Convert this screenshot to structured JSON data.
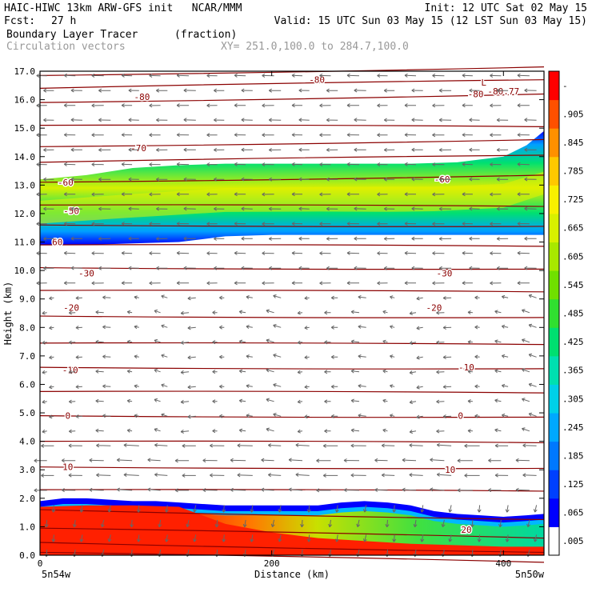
{
  "header": {
    "line1_left": "HAIC-HIWC 13km ARW-GFS init   NCAR/MMM",
    "line1_right": "Init: 12 UTC Sat 02 May 15",
    "fcst_label": "Fcst:",
    "fcst_value": "27 h",
    "valid": "Valid: 15 UTC Sun 03 May 15 (12 LST Sun 03 May 15)",
    "field_name": "Boundary Layer Tracer",
    "field_units": "(fraction)",
    "vector_label": "Circulation vectors",
    "xy_label": "XY= 251.0,100.0 to 284.7,100.0"
  },
  "chart_data": {
    "type": "heatmap",
    "title": "Boundary Layer Tracer",
    "units": "(fraction)",
    "xlabel": "Distance (km)",
    "ylabel": "Height (km)",
    "xlim": [
      0,
      435
    ],
    "ylim": [
      0,
      17
    ],
    "x_ticks": [
      "0",
      "200",
      "400"
    ],
    "y_ticks": [
      "0.0",
      "1.0",
      "2.0",
      "3.0",
      "4.0",
      "5.0",
      "6.0",
      "7.0",
      "8.0",
      "9.0",
      "10.0",
      "11.0",
      "12.0",
      "13.0",
      "14.0",
      "15.0",
      "16.0",
      "17.0"
    ],
    "x_endpoint_labels": [
      "5n54w",
      "5n50w"
    ],
    "colorbar_labels": [
      ".005",
      ".065",
      ".125",
      ".185",
      ".245",
      ".305",
      ".365",
      ".425",
      ".485",
      ".545",
      ".605",
      ".665",
      ".725",
      ".785",
      ".845",
      ".905",
      "-"
    ],
    "colorbar_colors": [
      "#ffffff",
      "#0000ff",
      "#0040ff",
      "#0078ff",
      "#00a8ff",
      "#00d0e8",
      "#00e0b0",
      "#00e070",
      "#30e030",
      "#70e000",
      "#a8e800",
      "#d8f000",
      "#f8f000",
      "#ffc800",
      "#ff9000",
      "#ff5000",
      "#ff0000"
    ],
    "temperature_contour_labels": [
      {
        "x": 15,
        "z": 11.0,
        "text": "60"
      },
      {
        "x": 88,
        "z": 16.1,
        "text": "-80"
      },
      {
        "x": 85,
        "z": 14.3,
        "text": "-70"
      },
      {
        "x": 22,
        "z": 13.1,
        "text": "-60"
      },
      {
        "x": 27,
        "z": 12.1,
        "text": "-50"
      },
      {
        "x": 40,
        "z": 9.9,
        "text": "-30"
      },
      {
        "x": 27,
        "z": 8.7,
        "text": "-20"
      },
      {
        "x": 26,
        "z": 6.5,
        "text": "-10"
      },
      {
        "x": 24,
        "z": 4.9,
        "text": "0"
      },
      {
        "x": 24,
        "z": 3.1,
        "text": "10"
      },
      {
        "x": 239,
        "z": 16.7,
        "text": "-80"
      },
      {
        "x": 376,
        "z": 16.2,
        "text": "-80"
      },
      {
        "x": 400,
        "z": 16.3,
        "text": "-80.77"
      },
      {
        "x": 383,
        "z": 16.6,
        "text": "L"
      },
      {
        "x": 347,
        "z": 13.2,
        "text": "-60"
      },
      {
        "x": 349,
        "z": 9.9,
        "text": "-30"
      },
      {
        "x": 340,
        "z": 8.7,
        "text": "-20"
      },
      {
        "x": 368,
        "z": 6.6,
        "text": "-10"
      },
      {
        "x": 363,
        "z": 4.9,
        "text": "0"
      },
      {
        "x": 354,
        "z": 3.0,
        "text": "10"
      },
      {
        "x": 368,
        "z": 0.9,
        "text": "20"
      }
    ],
    "tracer_upper_layer": {
      "x": [
        0,
        40,
        80,
        120,
        160,
        200,
        240,
        280,
        320,
        360,
        400,
        420,
        435
      ],
      "bottom": [
        10.9,
        10.9,
        10.95,
        11.0,
        11.2,
        11.25,
        11.25,
        11.25,
        11.25,
        11.25,
        11.25,
        11.25,
        11.25
      ],
      "top": [
        13.2,
        13.35,
        13.6,
        13.7,
        13.75,
        13.75,
        13.75,
        13.75,
        13.75,
        13.8,
        14.0,
        14.4,
        14.9
      ],
      "core_x": [
        0,
        80,
        160,
        240,
        300,
        340,
        400,
        435
      ],
      "core_max": [
        0.73,
        0.75,
        0.76,
        0.78,
        0.8,
        0.78,
        0.76,
        0.72
      ]
    },
    "tracer_boundary_layer": {
      "x": [
        0,
        20,
        40,
        60,
        80,
        100,
        120,
        140,
        160,
        200,
        240,
        260,
        280,
        300,
        320,
        340,
        360,
        380,
        400,
        420,
        435
      ],
      "top": [
        1.9,
        2.0,
        2.0,
        1.95,
        1.9,
        1.9,
        1.85,
        1.8,
        1.75,
        1.75,
        1.75,
        1.85,
        1.9,
        1.85,
        1.75,
        1.55,
        1.45,
        1.4,
        1.35,
        1.4,
        1.45
      ],
      "red_top_x": [
        0,
        40,
        80,
        120,
        140,
        160,
        200,
        240,
        280,
        320,
        360,
        400,
        435
      ],
      "red_top": [
        1.7,
        1.75,
        1.75,
        1.7,
        1.4,
        1.1,
        0.8,
        0.6,
        0.5,
        0.4,
        0.35,
        0.3,
        0.3
      ]
    },
    "colors": {
      "contour": "#8b0000",
      "vector": "#666666",
      "frame": "#000000"
    }
  }
}
